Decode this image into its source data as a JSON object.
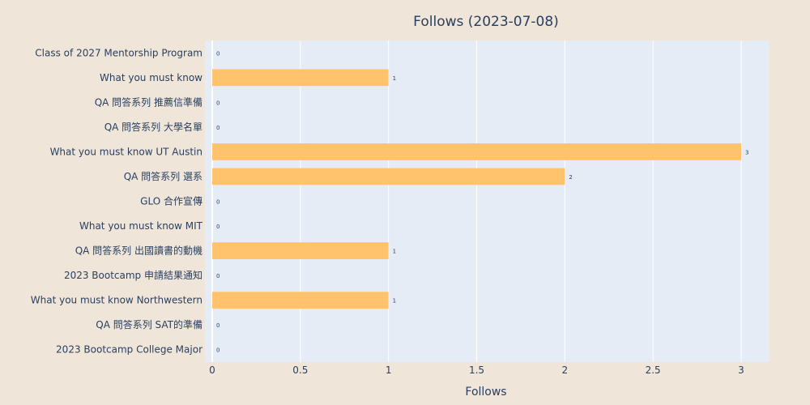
{
  "chart_data": {
    "type": "bar",
    "orientation": "horizontal",
    "title": "Follows (2023-07-08)",
    "xlabel": "Follows",
    "ylabel": "",
    "xlim": [
      0,
      3.16
    ],
    "x_ticks": [
      0,
      0.5,
      1,
      1.5,
      2,
      2.5,
      3
    ],
    "x_tick_labels": [
      "0",
      "0.5",
      "1",
      "1.5",
      "2",
      "2.5",
      "3"
    ],
    "grid": true,
    "bar_color": "#ffc36e",
    "plot_bg_color": "#e5ecf6",
    "page_bg_color": "#efe5d9",
    "categories": [
      "Class of 2027 Mentorship Program",
      "What you must know",
      "QA 問答系列 推薦信準備",
      "QA 問答系列 大學名單",
      "What you must know UT Austin",
      "QA 問答系列 選系",
      "GLO 合作宣傳",
      "What you must know MIT",
      "QA 問答系列 出國讀書的動機",
      "2023 Bootcamp 申請結果通知",
      "What you must know Northwestern",
      "QA 問答系列 SAT的準備",
      "2023 Bootcamp College Major"
    ],
    "values": [
      0,
      1,
      0,
      0,
      3,
      2,
      0,
      0,
      1,
      0,
      1,
      0,
      0
    ],
    "value_labels": [
      "0",
      "1",
      "0",
      "0",
      "3",
      "2",
      "0",
      "0",
      "1",
      "0",
      "1",
      "0",
      "0"
    ]
  }
}
